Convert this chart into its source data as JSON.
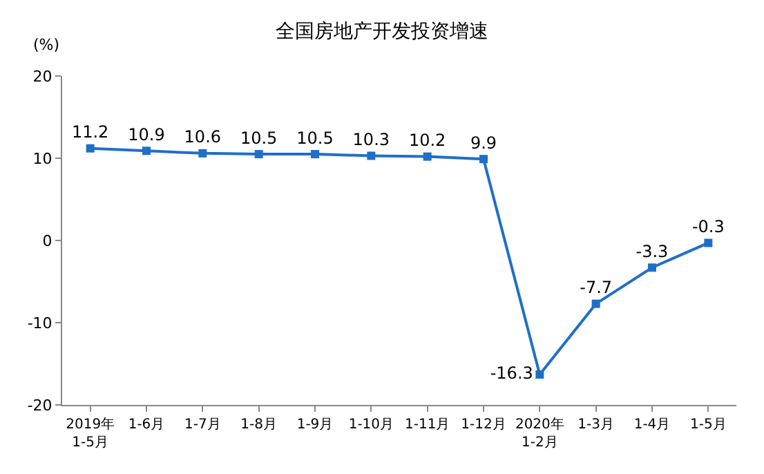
{
  "chart_data": {
    "type": "line",
    "title": "全国房地产开发投资增速",
    "ylabel": "(%)",
    "categories": [
      "2019年\n1-5月",
      "1-6月",
      "1-7月",
      "1-8月",
      "1-9月",
      "1-10月",
      "1-11月",
      "1-12月",
      "2020年\n1-2月",
      "1-3月",
      "1-4月",
      "1-5月"
    ],
    "series": [
      {
        "color": "#1f6fc8",
        "values": [
          11.2,
          10.9,
          10.6,
          10.5,
          10.5,
          10.3,
          10.2,
          9.9,
          -16.3,
          -7.7,
          -3.3,
          -0.3
        ]
      }
    ],
    "ylim": [
      -20,
      20
    ],
    "yticks": [
      -20,
      -10,
      0,
      10,
      20
    ],
    "legend": false,
    "marker": "square",
    "line_style": "solid",
    "data_labels": true
  }
}
